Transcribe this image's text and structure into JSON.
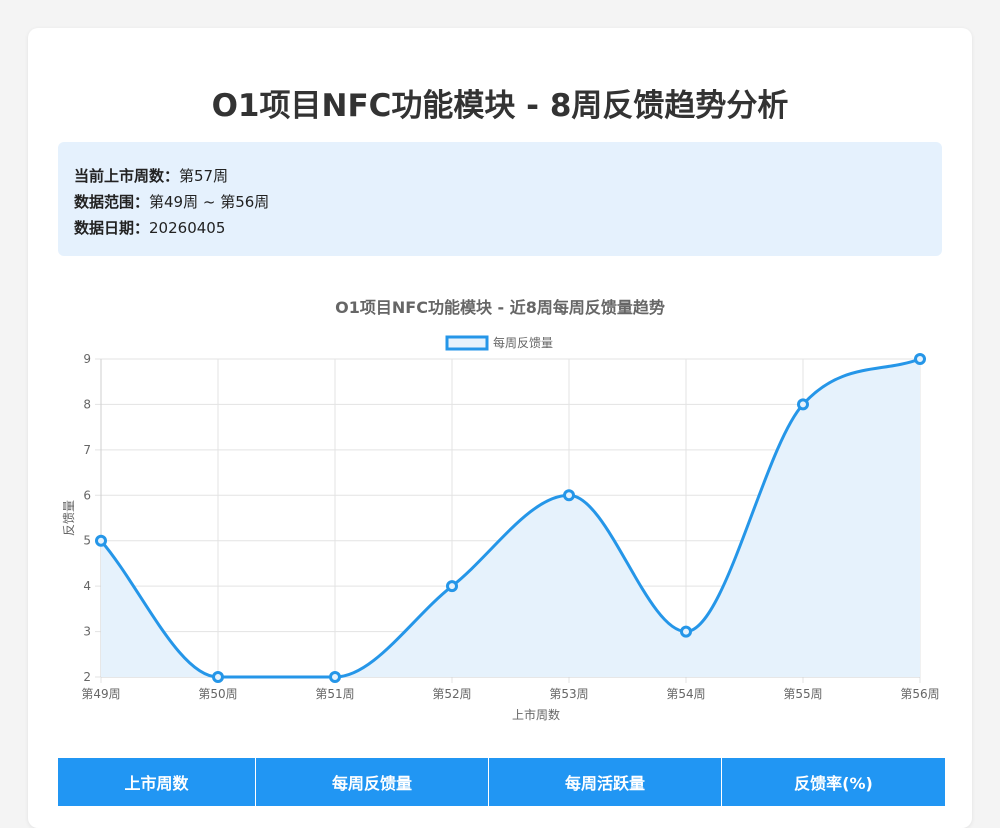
{
  "page": {
    "title": "O1项目NFC功能模块 - 8周反馈趋势分析"
  },
  "info": [
    {
      "label": "当前上市周数：",
      "value": "第57周"
    },
    {
      "label": "数据范围：",
      "value": "第49周 ~ 第56周"
    },
    {
      "label": "数据日期：",
      "value": "20260405"
    }
  ],
  "chart_data": {
    "type": "line",
    "title": "O1项目NFC功能模块 - 近8周每周反馈量趋势",
    "xlabel": "上市周数",
    "ylabel": "反馈量",
    "categories": [
      "第49周",
      "第50周",
      "第51周",
      "第52周",
      "第53周",
      "第54周",
      "第55周",
      "第56周"
    ],
    "series": [
      {
        "name": "每周反馈量",
        "values": [
          5,
          2,
          2,
          4,
          6,
          3,
          8,
          9
        ]
      }
    ],
    "ylim": [
      2,
      9
    ],
    "yticks": [
      2,
      3,
      4,
      5,
      6,
      7,
      8,
      9
    ],
    "grid": true,
    "legend": "top-center",
    "colors": {
      "line": "#2596e8",
      "fill": "#e6f2fc",
      "grid": "#e3e3e3"
    }
  },
  "table": {
    "headers": [
      "上市周数",
      "每周反馈量",
      "每周活跃量",
      "反馈率(%)"
    ]
  }
}
